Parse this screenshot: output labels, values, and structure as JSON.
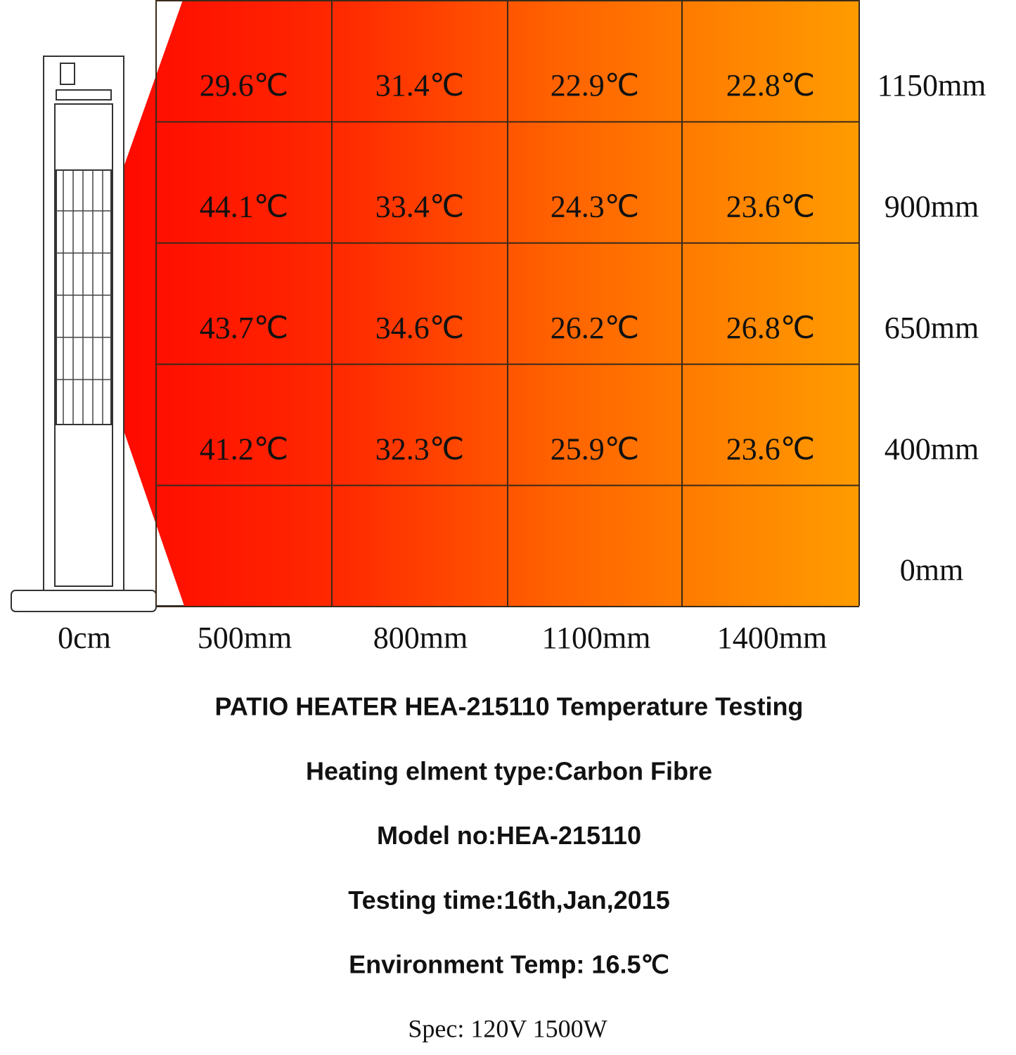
{
  "grid": {
    "rows": [
      [
        "29.6℃",
        "31.4℃",
        "22.9℃",
        "22.8℃"
      ],
      [
        "44.1℃",
        "33.4℃",
        "24.3℃",
        "23.6℃"
      ],
      [
        "43.7℃",
        "34.6℃",
        "26.2℃",
        "26.8℃"
      ],
      [
        "41.2℃",
        "32.3℃",
        "25.9℃",
        "23.6℃"
      ]
    ],
    "heights": [
      "1150mm",
      "900mm",
      "650mm",
      "400mm",
      "0mm"
    ],
    "distances": [
      "0cm",
      "500mm",
      "800mm",
      "1100mm",
      "1400mm"
    ]
  },
  "title": "PATIO HEATER HEA-215110 Temperature Testing",
  "details": [
    "Heating elment type:Carbon Fibre",
    "Model no:HEA-215110",
    "Testing time:16th,Jan,2015",
    "Environment Temp: 16.5℃"
  ],
  "spec": "Spec: 120V 1500W"
}
